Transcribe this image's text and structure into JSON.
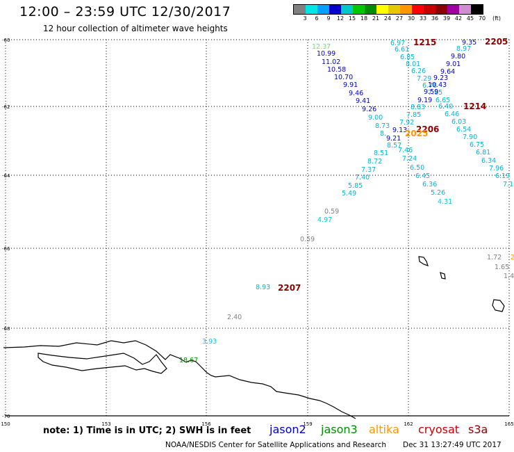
{
  "header": {
    "title": "12:00 – 23:59 UTC 12/30/2017",
    "subtitle": "12 hour collection of altimeter wave heights"
  },
  "colorbar": {
    "colors": [
      "#808080",
      "#00e5e5",
      "#00a0ff",
      "#0000c8",
      "#00c8c8",
      "#00c800",
      "#008c00",
      "#ffff00",
      "#e6c800",
      "#ff9600",
      "#ff0000",
      "#c80000",
      "#8c0000",
      "#a000a0",
      "#d28cd2",
      "#000000"
    ],
    "labels": [
      "3",
      "6",
      "9",
      "12",
      "15",
      "18",
      "21",
      "24",
      "27",
      "30",
      "33",
      "36",
      "39",
      "42",
      "45",
      "70",
      "(ft)"
    ]
  },
  "axes": {
    "lat_labels": [
      "-60",
      "-62",
      "-64",
      "-66",
      "-68",
      "-70"
    ],
    "lon_labels": [
      "150",
      "153",
      "156",
      "159",
      "162",
      "165"
    ]
  },
  "observations": [
    {
      "text": "12.37",
      "color": "#7fd37f"
    },
    {
      "text": "10.99",
      "color": "#0000c8"
    },
    {
      "text": "11.02",
      "color": "#0000c8"
    },
    {
      "text": "10.58",
      "color": "#0000c8"
    },
    {
      "text": "10.70",
      "color": "#0000c8"
    },
    {
      "text": "9.91",
      "color": "#0000c8"
    },
    {
      "text": "9.46",
      "color": "#0000c8"
    },
    {
      "text": "9.41",
      "color": "#0000c8"
    },
    {
      "text": "9.26",
      "color": "#0000c8"
    },
    {
      "text": "9.00",
      "color": "#00b4d2"
    },
    {
      "text": "8.73",
      "color": "#00b4d2"
    },
    {
      "text": "8.",
      "color": "#00b4d2"
    },
    {
      "text": "9.21",
      "color": "#0000c8"
    },
    {
      "text": "8.57",
      "color": "#00b4d2"
    },
    {
      "text": "8.51",
      "color": "#00b4d2"
    },
    {
      "text": "8.72",
      "color": "#00b4d2"
    },
    {
      "text": "7.37",
      "color": "#00b4d2"
    },
    {
      "text": "7.40",
      "color": "#00b4d2"
    },
    {
      "text": "5.85",
      "color": "#00b4d2"
    },
    {
      "text": "5.49",
      "color": "#00b4d2"
    },
    {
      "text": "0.59",
      "color": "#808080"
    },
    {
      "text": "4.97",
      "color": "#00c8e0"
    },
    {
      "text": "0.59",
      "color": "#808080"
    },
    {
      "text": "8.93",
      "color": "#00b4d2"
    },
    {
      "text": "2.40",
      "color": "#808080"
    },
    {
      "text": "3.93",
      "color": "#00c8e0"
    },
    {
      "text": "18.67",
      "color": "#008c00"
    },
    {
      "text": "6.97",
      "color": "#00b4d2"
    },
    {
      "text": "6.61",
      "color": "#00b4d2"
    },
    {
      "text": "6.85",
      "color": "#00b4d2"
    },
    {
      "text": "8.01",
      "color": "#00b4d2"
    },
    {
      "text": "6.26",
      "color": "#00b4d2"
    },
    {
      "text": "7.29",
      "color": "#00b4d2"
    },
    {
      "text": "6.78",
      "color": "#00b4d2"
    },
    {
      "text": "7.85",
      "color": "#00b4d2"
    },
    {
      "text": "9.19",
      "color": "#0000c8"
    },
    {
      "text": "8.83",
      "color": "#00b4d2"
    },
    {
      "text": "7.85",
      "color": "#00b4d2"
    },
    {
      "text": "7.92",
      "color": "#00b4d2"
    },
    {
      "text": "9.13",
      "color": "#0000c8"
    },
    {
      "text": "7.46",
      "color": "#00b4d2"
    },
    {
      "text": "7.24",
      "color": "#00b4d2"
    },
    {
      "text": "6.50",
      "color": "#00b4d2"
    },
    {
      "text": "6.45",
      "color": "#00b4d2"
    },
    {
      "text": "6.36",
      "color": "#00b4d2"
    },
    {
      "text": "5.26",
      "color": "#00b4d2"
    },
    {
      "text": "4.31",
      "color": "#00c8e0"
    },
    {
      "text": "9.35",
      "color": "#0000c8"
    },
    {
      "text": "8.97",
      "color": "#00b4d2"
    },
    {
      "text": "9.80",
      "color": "#0000c8"
    },
    {
      "text": "9.01",
      "color": "#0000c8"
    },
    {
      "text": "9.64",
      "color": "#0000c8"
    },
    {
      "text": "9.23",
      "color": "#0000c8"
    },
    {
      "text": "10.43",
      "color": "#0000c8"
    },
    {
      "text": "9.59",
      "color": "#0000c8"
    },
    {
      "text": "6.65",
      "color": "#00b4d2"
    },
    {
      "text": "6.40",
      "color": "#00b4d2"
    },
    {
      "text": "6.46",
      "color": "#00b4d2"
    },
    {
      "text": "6.03",
      "color": "#00b4d2"
    },
    {
      "text": "6.54",
      "color": "#00b4d2"
    },
    {
      "text": "7.90",
      "color": "#00b4d2"
    },
    {
      "text": "6.75",
      "color": "#00b4d2"
    },
    {
      "text": "6.81",
      "color": "#00b4d2"
    },
    {
      "text": "6.34",
      "color": "#00b4d2"
    },
    {
      "text": "7.96",
      "color": "#00b4d2"
    },
    {
      "text": "6.19",
      "color": "#00b4d2"
    },
    {
      "text": "7.1",
      "color": "#00b4d2"
    },
    {
      "text": "1.72",
      "color": "#808080"
    },
    {
      "text": "1.65",
      "color": "#808080"
    },
    {
      "text": "1.4",
      "color": "#808080"
    },
    {
      "text": "2",
      "color": "#ff9600"
    }
  ],
  "pass_labels": [
    {
      "text": "1215",
      "color": "#8c0000"
    },
    {
      "text": "2205",
      "color": "#8c0000"
    },
    {
      "text": "1214",
      "color": "#8c0000"
    },
    {
      "text": "2206",
      "color": "#8c0000"
    },
    {
      "text": "2025",
      "color": "#ff9600"
    },
    {
      "text": "2207",
      "color": "#8c0000"
    }
  ],
  "footer": {
    "note": "note:  1) Time is in UTC;  2) SWH is in feet",
    "legend": [
      {
        "name": "jason2",
        "color": "#0000c8"
      },
      {
        "name": "jason3",
        "color": "#008c00"
      },
      {
        "name": "altika",
        "color": "#ff9600"
      },
      {
        "name": "cryosat",
        "color": "#c80000"
      },
      {
        "name": "s3a",
        "color": "#8c0000"
      }
    ],
    "credit": "NOAA/NESDIS Center for Satellite Applications and Research",
    "timestamp": "Dec 31 13:27:49 UTC 2017"
  }
}
